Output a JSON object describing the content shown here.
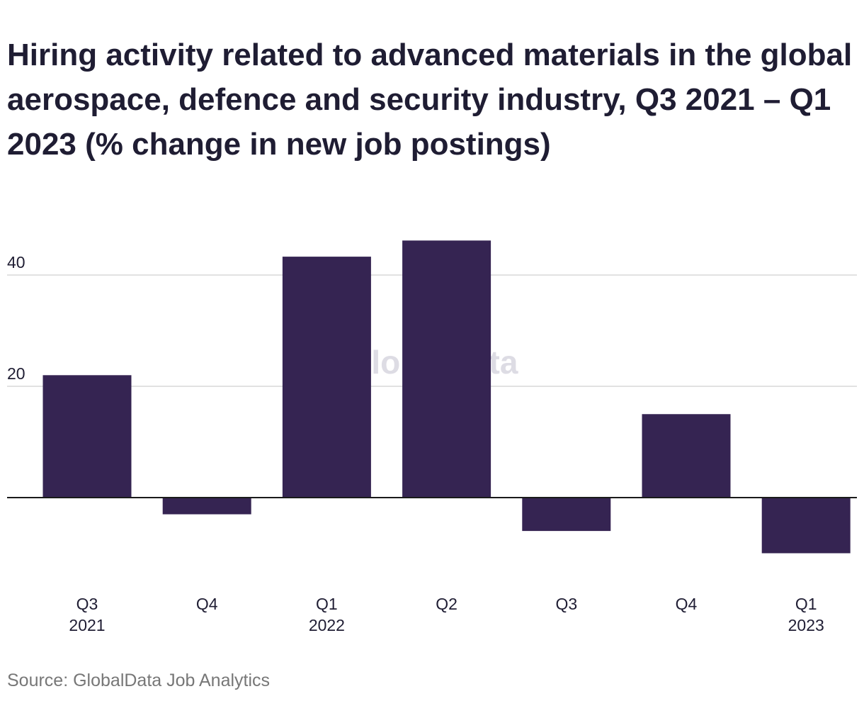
{
  "title": "Hiring activity related to advanced materials in the global aerospace, defence and security industry, Q3 2021 – Q1 2023 (% change in new job postings)",
  "watermark": "GlobalData",
  "source": "Source: GlobalData Job Analytics",
  "colors": {
    "bar": "#352452",
    "grid": "#d9d9d9",
    "zero_line": "#1a1a1a",
    "text": "#1f1d33",
    "watermark": "#d8d6e0"
  },
  "chart_data": {
    "type": "bar",
    "title": "Hiring activity related to advanced materials in the global aerospace, defence and security industry, Q3 2021 – Q1 2023 (% change in new job postings)",
    "categories": [
      [
        "Q3",
        "2021"
      ],
      [
        "Q4"
      ],
      [
        "Q1",
        "2022"
      ],
      [
        "Q2"
      ],
      [
        "Q3"
      ],
      [
        "Q4"
      ],
      [
        "Q1",
        "2023"
      ]
    ],
    "values": [
      22,
      -3,
      43.3,
      46.2,
      -6,
      15,
      -10
    ],
    "yticks": [
      20,
      40
    ],
    "ylim": [
      -15,
      50
    ],
    "grid": true,
    "legend": false,
    "xlabel": "",
    "ylabel": ""
  }
}
